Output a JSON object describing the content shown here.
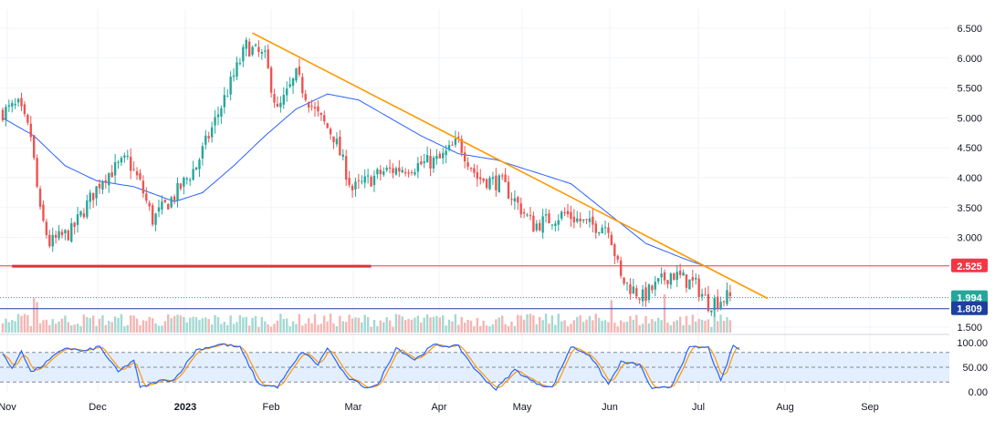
{
  "chart_data": {
    "type": "candlestick",
    "price_axis": {
      "min": 1.5,
      "max": 6.5,
      "ticks": [
        "6.500",
        "6.000",
        "5.500",
        "5.000",
        "4.500",
        "4.000",
        "3.500",
        "3.000",
        "2.500",
        "2.000",
        "1.500"
      ],
      "tick_values": [
        6.5,
        6.0,
        5.5,
        5.0,
        4.5,
        4.0,
        3.5,
        3.0,
        2.5,
        2.0,
        1.5
      ]
    },
    "time_axis": {
      "labels": [
        "Nov",
        "Dec",
        "2023",
        "Feb",
        "Mar",
        "Apr",
        "May",
        "Jun",
        "Jul",
        "Aug",
        "Sep"
      ],
      "bold": [
        false,
        false,
        true,
        false,
        false,
        false,
        false,
        false,
        false,
        false,
        false
      ]
    },
    "price_series_anchors": [
      {
        "bar": 0,
        "price": 5.1
      },
      {
        "bar": 5,
        "price": 5.2
      },
      {
        "bar": 9,
        "price": 4.7
      },
      {
        "bar": 12,
        "price": 3.4
      },
      {
        "bar": 15,
        "price": 2.9
      },
      {
        "bar": 22,
        "price": 3.1
      },
      {
        "bar": 32,
        "price": 4.0
      },
      {
        "bar": 40,
        "price": 4.3
      },
      {
        "bar": 44,
        "price": 3.9
      },
      {
        "bar": 48,
        "price": 3.3
      },
      {
        "bar": 55,
        "price": 3.7
      },
      {
        "bar": 62,
        "price": 4.2
      },
      {
        "bar": 70,
        "price": 5.2
      },
      {
        "bar": 78,
        "price": 6.2
      },
      {
        "bar": 84,
        "price": 6.0
      },
      {
        "bar": 88,
        "price": 5.1
      },
      {
        "bar": 94,
        "price": 5.7
      },
      {
        "bar": 100,
        "price": 5.1
      },
      {
        "bar": 106,
        "price": 4.7
      },
      {
        "bar": 112,
        "price": 3.8
      },
      {
        "bar": 122,
        "price": 4.1
      },
      {
        "bar": 132,
        "price": 4.2
      },
      {
        "bar": 140,
        "price": 4.3
      },
      {
        "bar": 146,
        "price": 4.6
      },
      {
        "bar": 152,
        "price": 4.0
      },
      {
        "bar": 160,
        "price": 3.9
      },
      {
        "bar": 170,
        "price": 3.2
      },
      {
        "bar": 180,
        "price": 3.4
      },
      {
        "bar": 188,
        "price": 3.2
      },
      {
        "bar": 194,
        "price": 3.2
      },
      {
        "bar": 198,
        "price": 2.3
      },
      {
        "bar": 205,
        "price": 2.0
      },
      {
        "bar": 214,
        "price": 2.4
      },
      {
        "bar": 222,
        "price": 2.2
      },
      {
        "bar": 226,
        "price": 1.9
      },
      {
        "bar": 232,
        "price": 2.0
      },
      {
        "bar": 233,
        "price": 1.99
      }
    ],
    "moving_average_anchors": [
      {
        "bar": 0,
        "price": 5.0
      },
      {
        "bar": 10,
        "price": 4.7
      },
      {
        "bar": 20,
        "price": 4.2
      },
      {
        "bar": 30,
        "price": 3.95
      },
      {
        "bar": 42,
        "price": 3.85
      },
      {
        "bar": 55,
        "price": 3.6
      },
      {
        "bar": 64,
        "price": 3.75
      },
      {
        "bar": 74,
        "price": 4.2
      },
      {
        "bar": 84,
        "price": 4.7
      },
      {
        "bar": 94,
        "price": 5.15
      },
      {
        "bar": 104,
        "price": 5.4
      },
      {
        "bar": 114,
        "price": 5.3
      },
      {
        "bar": 124,
        "price": 5.0
      },
      {
        "bar": 134,
        "price": 4.7
      },
      {
        "bar": 146,
        "price": 4.4
      },
      {
        "bar": 158,
        "price": 4.3
      },
      {
        "bar": 170,
        "price": 4.1
      },
      {
        "bar": 182,
        "price": 3.9
      },
      {
        "bar": 194,
        "price": 3.4
      },
      {
        "bar": 206,
        "price": 2.9
      },
      {
        "bar": 218,
        "price": 2.65
      },
      {
        "bar": 226,
        "price": 2.5
      }
    ],
    "trendline": {
      "start": {
        "bar": 80,
        "price": 6.42
      },
      "end": {
        "bar": 245,
        "price": 1.98
      }
    },
    "horizontal_support_segment": {
      "start_bar": 3,
      "end_bar": 118,
      "price": 2.52
    },
    "levels": [
      {
        "price": 2.525,
        "label": "2.525",
        "color": "#f23645"
      },
      {
        "price": 1.994,
        "label": "1.994",
        "color": "#26a69a"
      },
      {
        "price": 1.809,
        "label": "1.809",
        "color": "#1e3fa0"
      }
    ],
    "volume_spikes": [
      {
        "bar": 10,
        "level": 0.9
      },
      {
        "bar": 11,
        "level": 0.8
      },
      {
        "bar": 195,
        "level": 0.85
      },
      {
        "bar": 212,
        "level": 1.0
      },
      {
        "bar": 228,
        "level": 0.9
      }
    ],
    "oscillator": {
      "type": "stochastic",
      "range": [
        0,
        100
      ],
      "ticks": [
        "100.00",
        "50.00",
        "0.00"
      ],
      "tick_values": [
        100,
        50,
        0
      ],
      "upper_band": 80,
      "lower_band": 20,
      "k_anchors": [
        {
          "bar": 0,
          "value": 80
        },
        {
          "bar": 3,
          "value": 45
        },
        {
          "bar": 6,
          "value": 85
        },
        {
          "bar": 9,
          "value": 40
        },
        {
          "bar": 12,
          "value": 50
        },
        {
          "bar": 20,
          "value": 90
        },
        {
          "bar": 26,
          "value": 82
        },
        {
          "bar": 31,
          "value": 92
        },
        {
          "bar": 37,
          "value": 40
        },
        {
          "bar": 42,
          "value": 65
        },
        {
          "bar": 44,
          "value": 8
        },
        {
          "bar": 50,
          "value": 22
        },
        {
          "bar": 55,
          "value": 25
        },
        {
          "bar": 62,
          "value": 85
        },
        {
          "bar": 70,
          "value": 97
        },
        {
          "bar": 76,
          "value": 90
        },
        {
          "bar": 82,
          "value": 15
        },
        {
          "bar": 88,
          "value": 10
        },
        {
          "bar": 96,
          "value": 82
        },
        {
          "bar": 101,
          "value": 55
        },
        {
          "bar": 104,
          "value": 90
        },
        {
          "bar": 110,
          "value": 30
        },
        {
          "bar": 116,
          "value": 10
        },
        {
          "bar": 120,
          "value": 12
        },
        {
          "bar": 126,
          "value": 90
        },
        {
          "bar": 132,
          "value": 65
        },
        {
          "bar": 138,
          "value": 95
        },
        {
          "bar": 146,
          "value": 92
        },
        {
          "bar": 152,
          "value": 40
        },
        {
          "bar": 158,
          "value": 5
        },
        {
          "bar": 164,
          "value": 45
        },
        {
          "bar": 170,
          "value": 20
        },
        {
          "bar": 176,
          "value": 8
        },
        {
          "bar": 182,
          "value": 92
        },
        {
          "bar": 188,
          "value": 75
        },
        {
          "bar": 194,
          "value": 15
        },
        {
          "bar": 198,
          "value": 60
        },
        {
          "bar": 204,
          "value": 55
        },
        {
          "bar": 208,
          "value": 5
        },
        {
          "bar": 214,
          "value": 10
        },
        {
          "bar": 220,
          "value": 90
        },
        {
          "bar": 226,
          "value": 90
        },
        {
          "bar": 230,
          "value": 20
        },
        {
          "bar": 234,
          "value": 95
        },
        {
          "bar": 236,
          "value": 85
        }
      ],
      "colors": {
        "k": "#2962ff",
        "d": "#ff9800",
        "band_fill": "#e3efff",
        "band_line": "#868993"
      }
    }
  },
  "colors": {
    "bull": "#26a69a",
    "bear": "#ef5350",
    "ma": "#2962ff",
    "trendline": "#ff9800",
    "support": "#e0303a",
    "grid": "#f0f3fa",
    "volume_bull": "#a3d9d3",
    "volume_bear": "#f5b5b3"
  }
}
